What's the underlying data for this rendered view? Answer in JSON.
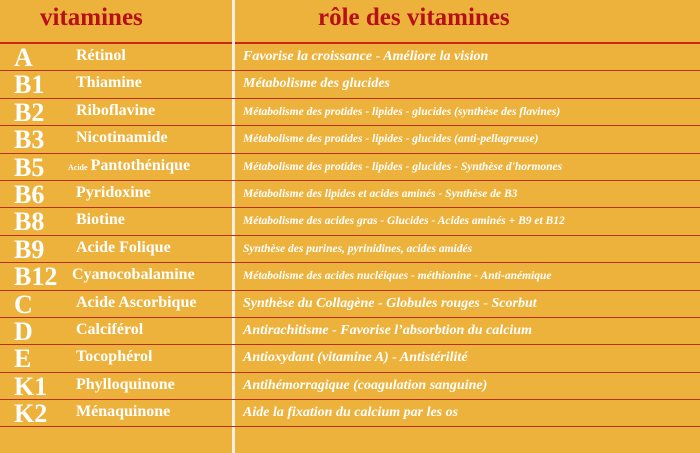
{
  "header": {
    "col1": "vitamines",
    "col2": "rôle des vitamines"
  },
  "colors": {
    "background": "#ecb23c",
    "header_text": "#b8101a",
    "rule": "#b83020"
  },
  "rows": [
    {
      "letter": "A",
      "prefix": "",
      "name": "Rétinol",
      "role": "Favorise la croissance - Améliore la vision",
      "small": false
    },
    {
      "letter": "B1",
      "prefix": "",
      "name": "Thiamine",
      "role": "Métabolisme des glucides",
      "small": false
    },
    {
      "letter": "B2",
      "prefix": "",
      "name": "Riboflavine",
      "role": "Métabolisme des protides - lipides - glucides (synthèse  des flavines)",
      "small": true
    },
    {
      "letter": "B3",
      "prefix": "",
      "name": "Nicotinamide",
      "role": "Métabolisme des protides - lipides - glucides (anti-pellagreuse)",
      "small": true
    },
    {
      "letter": "B5",
      "prefix": "Acide",
      "name": "Pantothénique",
      "role": "Métabolisme des protides - lipides - glucides - Synthèse d'hormones",
      "small": true
    },
    {
      "letter": "B6",
      "prefix": "",
      "name": "Pyridoxine",
      "role": "Métabolisme des  lipides et acides aminés - Synthèse de B3",
      "small": true
    },
    {
      "letter": "B8",
      "prefix": "",
      "name": "Biotine",
      "role": "Métabolisme des acides gras -  Glucides - Acides aminés + B9  et  B12",
      "small": true
    },
    {
      "letter": "B9",
      "prefix": "",
      "name": "Acide Folique",
      "role": "Synthèse des purines,  pyrinidines,  acides amidés",
      "small": true
    },
    {
      "letter": "B12",
      "prefix": "",
      "name": "Cyanocobalamine",
      "role": "Métabolisme des acides nucléiques -  méthionine -  Anti-anémique",
      "small": true
    },
    {
      "letter": "C",
      "prefix": "",
      "name": "Acide Ascorbique",
      "role": "Synthèse du Collagène - Globules rouges -  Scorbut",
      "small": false
    },
    {
      "letter": "D",
      "prefix": "",
      "name": "Calciférol",
      "role": "Antirachitisme - Favorise l’absorbtion du calcium",
      "small": false
    },
    {
      "letter": "E",
      "prefix": "",
      "name": "Tocophérol",
      "role": " Antioxydant (vitamine A) - Antistérilité",
      "small": false
    },
    {
      "letter": "K1",
      "prefix": "",
      "name": "Phylloquinone",
      "role": "Antihémorragique (coagulation sanguine)",
      "small": false
    },
    {
      "letter": "K2",
      "prefix": "",
      "name": "Ménaquinone",
      "role": "Aide la fixation du calcium par les os",
      "small": false
    }
  ]
}
